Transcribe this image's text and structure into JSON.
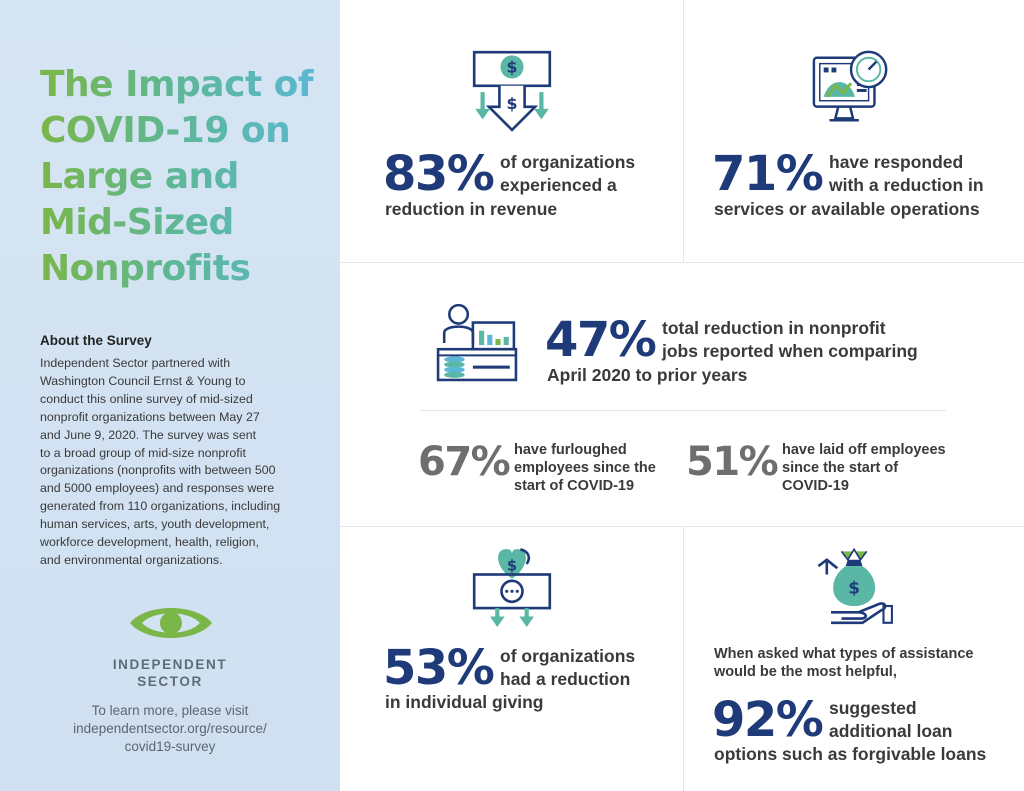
{
  "sidebar": {
    "title": "The Impact of\nCOVID-19 on\nLarge and\nMid-Sized\nNonprofits",
    "about_heading": "About the Survey",
    "about_body": "Independent Sector partnered with\nWashington Council Ernst & Young to\nconduct this online survey of mid-sized\nnonprofit organizations between May 27\nand June 9, 2020. The survey was sent\nto a broad group of mid-size nonprofit\norganizations (nonprofits with between 500\nand 5000 employees) and responses were\ngenerated from 110 organizations, including\nhuman services, arts, youth development,\nworkforce development, health, religion,\nand environmental organizations.",
    "logo_text": "INDEPENDENT\nSECTOR",
    "learn_more": "To learn more, please visit\nindependentsector.org/resource/\ncovid19-survey"
  },
  "stats": {
    "revenue": {
      "value": "83%",
      "text_a": "of organizations\nexperienced a",
      "text_b": "reduction in revenue"
    },
    "services": {
      "value": "71%",
      "text_a": "have responded\nwith a reduction in",
      "text_b": "services or available operations"
    },
    "jobs": {
      "value": "47%",
      "text_a": "total reduction in nonprofit\njobs reported when comparing",
      "text_b": "April 2020 to prior years"
    },
    "furloughed": {
      "value": "67%",
      "text": "have furloughed\nemployees since the\nstart of COVID-19"
    },
    "laid_off": {
      "value": "51%",
      "text": "have laid off employees\nsince the start of\nCOVID-19"
    },
    "giving": {
      "value": "53%",
      "text_a": "of organizations\nhad a reduction",
      "text_b": "in individual giving"
    },
    "loans": {
      "intro": "When asked what types of assistance\nwould be the most helpful,",
      "value": "92%",
      "text_a": "suggested\nadditional loan",
      "text_b": "options such as forgivable loans"
    }
  },
  "icons": [
    "money-down-icon",
    "monitor-gauge-icon",
    "desk-worker-icon",
    "money-heart-icon",
    "hand-money-bag-icon",
    "independent-sector-eye-icon"
  ],
  "colors": {
    "navy": "#1e3a78",
    "green": "#7ab648",
    "teal": "#5ab7a6",
    "sky": "#5ab7d8",
    "sidebar": "#d6e5f3",
    "gray": "#6e6e6e"
  }
}
